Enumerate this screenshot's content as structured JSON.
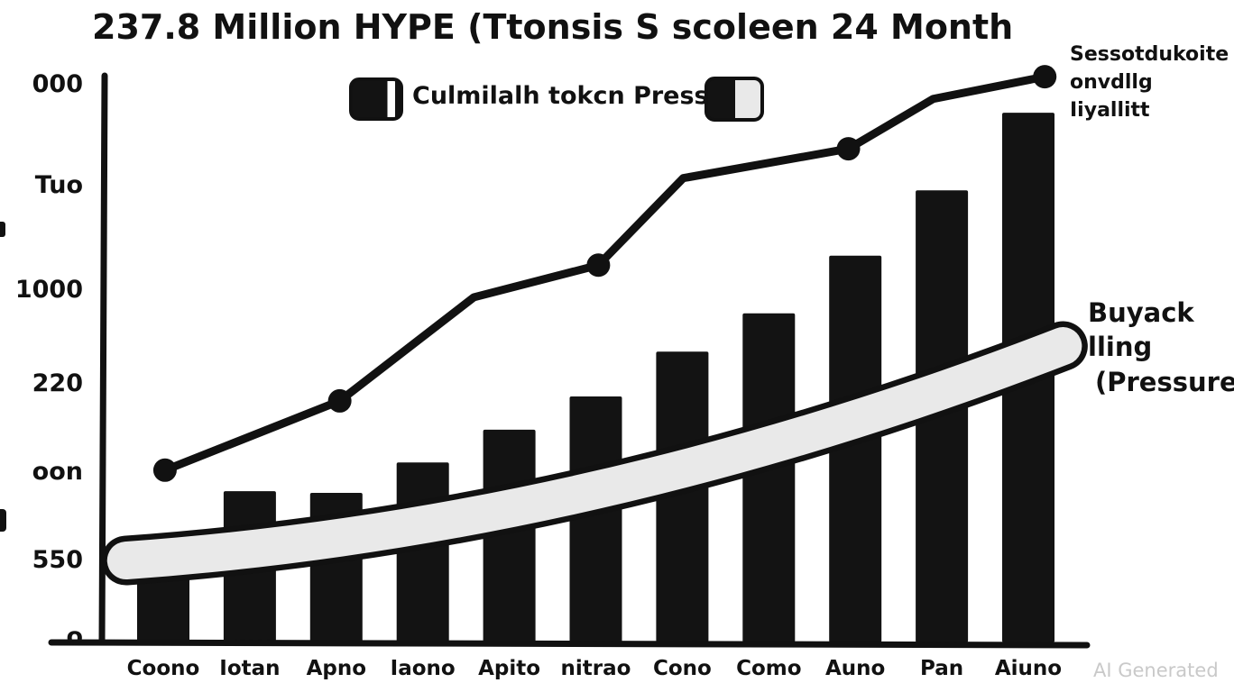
{
  "watermark": "AI Generated",
  "chart_data": {
    "type": "combo",
    "style": "hand-drawn black marker chart on white background",
    "title": "237.8 Million HYPE (Ttonsis S scoleen 24 Month",
    "categories": [
      "Coono",
      "Iotan",
      "Apno",
      "Iaono",
      "Apito",
      "nitrao",
      "Cono",
      "Como",
      "Auno",
      "Pan",
      "Aiuno"
    ],
    "y_axis": {
      "note": "pct = percent of axis height measured from baseline (0) to top tick (100); tick labels are stylized/illegible glyphs",
      "tick_labels": [
        {
          "label": "000",
          "pct": 100
        },
        {
          "label": "Tuo",
          "pct": 81.8
        },
        {
          "label": "1000",
          "pct": 62.9
        },
        {
          "label": "220",
          "pct": 46.0
        },
        {
          "label": "oon",
          "pct": 30.1
        },
        {
          "label": "550",
          "pct": 14.1
        },
        {
          "label": "o",
          "pct": 0.3
        }
      ]
    },
    "legend": {
      "label": "Culmilalh tokcn Pressur",
      "swatch1": "solid black rounded block with white sliver",
      "swatch2": "half black half light-gray rounded block"
    },
    "series": [
      {
        "name": "Culmilalh tokcn Pressur",
        "type": "bar",
        "color": "#131313",
        "values_pct": [
          17.5,
          26.8,
          26.5,
          32.0,
          37.9,
          43.9,
          52.0,
          58.9,
          69.3,
          81.1,
          95.1
        ]
      },
      {
        "name": "cumulative-trend-line",
        "type": "line",
        "color": "#111111",
        "points": [
          {
            "col": 1.02,
            "pct": 30.6,
            "marker": true
          },
          {
            "col": 3.04,
            "pct": 43.1,
            "marker": true
          },
          {
            "col": 4.59,
            "pct": 61.8,
            "marker": false
          },
          {
            "col": 6.03,
            "pct": 67.6,
            "marker": true
          },
          {
            "col": 7.01,
            "pct": 83.3,
            "marker": false
          },
          {
            "col": 8.92,
            "pct": 88.6,
            "marker": true
          },
          {
            "col": 9.9,
            "pct": 97.6,
            "marker": false
          },
          {
            "col": 11.19,
            "pct": 101.6,
            "marker": true
          }
        ]
      },
      {
        "name": "Buyack lling (Pressure)",
        "type": "band",
        "fill": "#e9e9e9",
        "outline": "#111111",
        "start": {
          "col": 0.57,
          "pct": 14.3
        },
        "ctrl": {
          "col": 6.0,
          "pct": 20.3
        },
        "end": {
          "col": 11.4,
          "pct": 53.0
        }
      }
    ],
    "annotations": {
      "line_end_label": [
        "Sessotdukoite",
        "onvdllg Iiyallitt"
      ],
      "band_label": [
        "Buyack lling",
        "(Pressure)"
      ]
    }
  }
}
